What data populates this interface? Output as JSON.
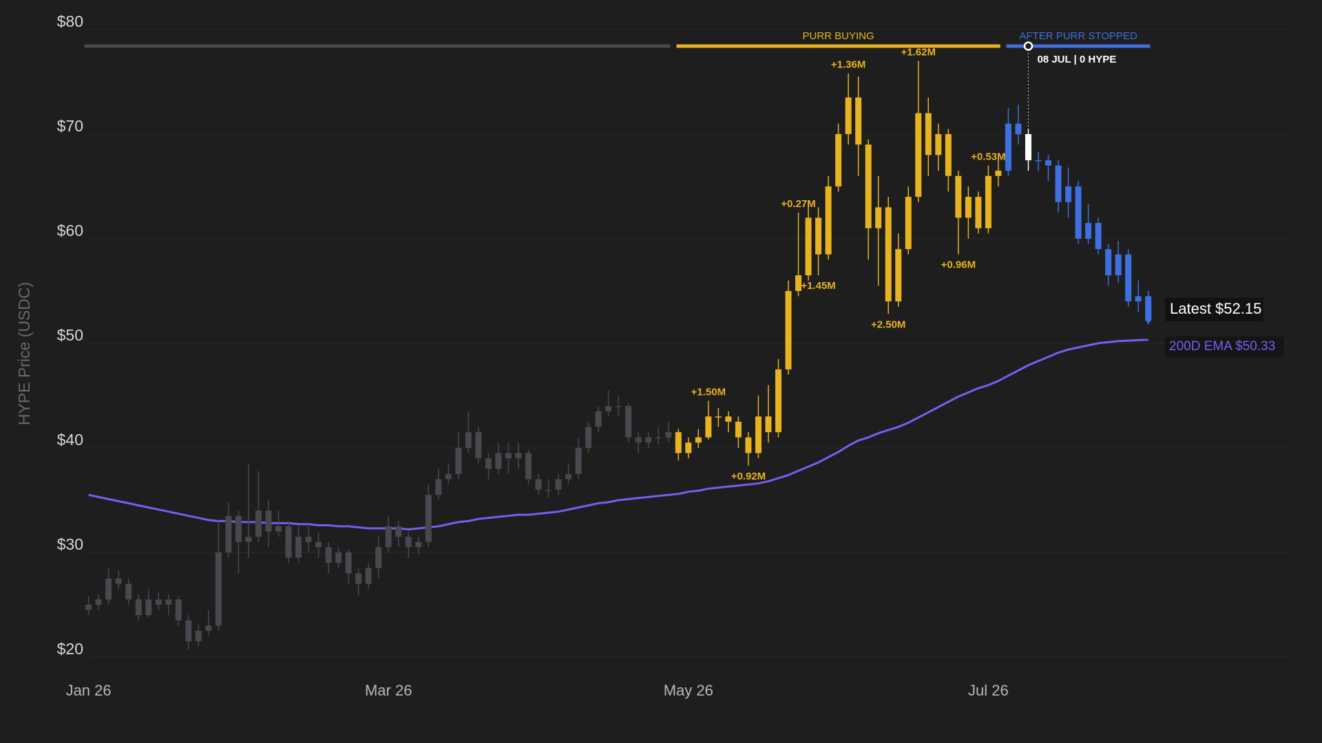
{
  "chart_data": {
    "type": "candlestick",
    "y_label": "HYPE Price (USDC)",
    "ylim": [
      20,
      80
    ],
    "yticks": [
      {
        "value": 20,
        "label": "$20"
      },
      {
        "value": 30,
        "label": "$30"
      },
      {
        "value": 40,
        "label": "$40"
      },
      {
        "value": 50,
        "label": "$50"
      },
      {
        "value": 60,
        "label": "$60"
      },
      {
        "value": 70,
        "label": "$70"
      },
      {
        "value": 80,
        "label": "$80"
      }
    ],
    "grid": true,
    "categories": [
      "Jan 26",
      null,
      null,
      null,
      null,
      null,
      null,
      null,
      null,
      null,
      null,
      null,
      null,
      null,
      null,
      null,
      null,
      null,
      null,
      null,
      null,
      null,
      null,
      null,
      null,
      null,
      null,
      null,
      null,
      null,
      "Mar 26",
      null,
      null,
      null,
      null,
      null,
      null,
      null,
      null,
      null,
      null,
      null,
      null,
      null,
      null,
      null,
      null,
      null,
      null,
      null,
      null,
      null,
      null,
      null,
      null,
      null,
      null,
      null,
      null,
      null,
      "May 26",
      null,
      null,
      null,
      null,
      null,
      null,
      null,
      null,
      null,
      null,
      null,
      null,
      null,
      null,
      null,
      null,
      null,
      null,
      null,
      null,
      null,
      null,
      null,
      null,
      null,
      null,
      null,
      null,
      null,
      "Jul 26",
      null,
      null,
      null,
      null,
      null,
      null,
      null,
      null,
      null,
      null,
      null,
      null,
      null,
      null,
      null,
      null
    ],
    "ohlc": [
      [
        24.5,
        25.8,
        24,
        25
      ],
      [
        25,
        26,
        24.5,
        25.5
      ],
      [
        25.5,
        28.5,
        25,
        27.5
      ],
      [
        27.5,
        28.3,
        26.5,
        27
      ],
      [
        27,
        27.5,
        25,
        25.5
      ],
      [
        25.5,
        26,
        23.5,
        24
      ],
      [
        24,
        26.5,
        23.8,
        25.5
      ],
      [
        25.5,
        26.2,
        24.5,
        25
      ],
      [
        25,
        26,
        24,
        25.5
      ],
      [
        25.5,
        25.8,
        23,
        23.5
      ],
      [
        23.5,
        24,
        20.7,
        21.5
      ],
      [
        21.5,
        23.2,
        21,
        22.5
      ],
      [
        22.5,
        24.5,
        22,
        23
      ],
      [
        23,
        33,
        22.5,
        30
      ],
      [
        30,
        34.8,
        29.5,
        33.5
      ],
      [
        33.5,
        34,
        28,
        31
      ],
      [
        31,
        38.5,
        29.5,
        31.5
      ],
      [
        31.5,
        37.8,
        31,
        34
      ],
      [
        34,
        35,
        30.5,
        32
      ],
      [
        32,
        34,
        31.5,
        32.5
      ],
      [
        32.5,
        33,
        29,
        29.5
      ],
      [
        29.5,
        32.5,
        29,
        31.5
      ],
      [
        31.5,
        32.5,
        30,
        31
      ],
      [
        31,
        32,
        29.5,
        30.5
      ],
      [
        30.5,
        31,
        28,
        29
      ],
      [
        29,
        30.5,
        28.5,
        30
      ],
      [
        30,
        30.3,
        27,
        28
      ],
      [
        28,
        28.5,
        25.8,
        27
      ],
      [
        27,
        29,
        26.5,
        28.5
      ],
      [
        28.5,
        31.5,
        27.5,
        30.5
      ],
      [
        30.5,
        33.5,
        30,
        32.5
      ],
      [
        32.5,
        33,
        30.5,
        31.5
      ],
      [
        31.5,
        32,
        29.5,
        30.5
      ],
      [
        30.5,
        31.5,
        29.8,
        31
      ],
      [
        31,
        36.5,
        30.5,
        35.5
      ],
      [
        35.5,
        38,
        35,
        37
      ],
      [
        37,
        38.5,
        36.5,
        37.5
      ],
      [
        37.5,
        41.5,
        37,
        40
      ],
      [
        40,
        43.5,
        39.5,
        41.5
      ],
      [
        41.5,
        42,
        38.5,
        39
      ],
      [
        39,
        39.5,
        37,
        38
      ],
      [
        38,
        40.5,
        37.5,
        39.5
      ],
      [
        39.5,
        40.5,
        37.5,
        39
      ],
      [
        39,
        40.5,
        38,
        39.5
      ],
      [
        39.5,
        39.8,
        36.5,
        37
      ],
      [
        37,
        37.5,
        35.5,
        36
      ],
      [
        36,
        37,
        35.2,
        36
      ],
      [
        36,
        37.5,
        35.5,
        37
      ],
      [
        37,
        38.5,
        36.5,
        37.5
      ],
      [
        37.5,
        41,
        37,
        40
      ],
      [
        40,
        42.5,
        39.5,
        42
      ],
      [
        42,
        44,
        41.5,
        43.5
      ],
      [
        43.5,
        45.5,
        43,
        44
      ],
      [
        44,
        45,
        43,
        44
      ],
      [
        44,
        44.3,
        40.5,
        41
      ],
      [
        41,
        41.5,
        39.5,
        40.5
      ],
      [
        40.5,
        41.5,
        40,
        41
      ],
      [
        41,
        42,
        40.3,
        41
      ],
      [
        41,
        42.5,
        40.5,
        41.5
      ],
      [
        41.5,
        41.8,
        38.8,
        39.5
      ],
      [
        39.5,
        41,
        39,
        40.5
      ],
      [
        40.5,
        41.8,
        40,
        41
      ],
      [
        41,
        44.5,
        40.8,
        43
      ],
      [
        43,
        43.8,
        42,
        43
      ],
      [
        43,
        43.5,
        41.5,
        42.5
      ],
      [
        42.5,
        43,
        40,
        41
      ],
      [
        41,
        41.5,
        38.3,
        39.5
      ],
      [
        39.5,
        45,
        39,
        43
      ],
      [
        43,
        46,
        40.5,
        41.5
      ],
      [
        41.5,
        48.5,
        41,
        47.5
      ],
      [
        47.5,
        56,
        47,
        55
      ],
      [
        55,
        62.5,
        54.5,
        56.5
      ],
      [
        56.5,
        63.5,
        56,
        62
      ],
      [
        62,
        63,
        56.5,
        58.5
      ],
      [
        58.5,
        66,
        58,
        65
      ],
      [
        65,
        71,
        64.5,
        70
      ],
      [
        70,
        75.8,
        69,
        73.5
      ],
      [
        73.5,
        75.5,
        66,
        69
      ],
      [
        69,
        69.5,
        58,
        61
      ],
      [
        61,
        66,
        55.5,
        63
      ],
      [
        63,
        64,
        52.8,
        54
      ],
      [
        54,
        60.5,
        53.5,
        59
      ],
      [
        59,
        65,
        58.5,
        64
      ],
      [
        64,
        77,
        63.5,
        72
      ],
      [
        72,
        73.5,
        66,
        68
      ],
      [
        68,
        71,
        66.5,
        70
      ],
      [
        70,
        70.5,
        64.5,
        66
      ],
      [
        66,
        66.5,
        58.5,
        62
      ],
      [
        62,
        65,
        60,
        64
      ],
      [
        64,
        64.5,
        60.5,
        61
      ],
      [
        61,
        67,
        60.5,
        66
      ],
      [
        66,
        68,
        65,
        66.5
      ],
      [
        66.5,
        72.5,
        66,
        71
      ],
      [
        71,
        72.8,
        69,
        70
      ],
      [
        70,
        70.5,
        66.5,
        67.5
      ],
      [
        67.5,
        68.3,
        66.5,
        67.5
      ],
      [
        67.5,
        68,
        65.5,
        67
      ],
      [
        67,
        67.5,
        62.5,
        63.5
      ],
      [
        63.5,
        66.8,
        62,
        65
      ],
      [
        65,
        65.5,
        59.5,
        60
      ],
      [
        60,
        63.3,
        59.5,
        61.5
      ],
      [
        61.5,
        62,
        58.5,
        59
      ],
      [
        59,
        59.5,
        55.5,
        56.5
      ],
      [
        56.5,
        59.8,
        55.8,
        58.5
      ],
      [
        58.5,
        59,
        53.5,
        54
      ],
      [
        54,
        56,
        53,
        54.5
      ],
      [
        54.5,
        55,
        51.8,
        52.15
      ]
    ],
    "phases": [
      {
        "color": "#48484f",
        "end": 58
      },
      {
        "label": "PURR BUYING",
        "color": "#e8b321",
        "end": 91
      },
      {
        "label": "AFTER PURR STOPPED",
        "color": "#3d6fde",
        "end": 106
      }
    ],
    "ema": [
      35.5,
      35.3,
      35.1,
      34.9,
      34.7,
      34.5,
      34.3,
      34.1,
      33.9,
      33.7,
      33.5,
      33.3,
      33.1,
      33.0,
      33.0,
      32.9,
      32.9,
      32.9,
      32.8,
      32.8,
      32.8,
      32.7,
      32.7,
      32.6,
      32.6,
      32.5,
      32.5,
      32.4,
      32.3,
      32.3,
      32.3,
      32.3,
      32.2,
      32.3,
      32.4,
      32.5,
      32.7,
      32.9,
      33.0,
      33.2,
      33.3,
      33.4,
      33.5,
      33.6,
      33.6,
      33.7,
      33.8,
      33.9,
      34.1,
      34.3,
      34.5,
      34.7,
      34.8,
      35.0,
      35.1,
      35.2,
      35.3,
      35.4,
      35.5,
      35.6,
      35.8,
      35.9,
      36.1,
      36.2,
      36.3,
      36.4,
      36.5,
      36.6,
      36.8,
      37.1,
      37.4,
      37.8,
      38.2,
      38.6,
      39.1,
      39.6,
      40.2,
      40.7,
      41.0,
      41.4,
      41.7,
      42.0,
      42.4,
      42.9,
      43.4,
      43.9,
      44.4,
      44.9,
      45.3,
      45.7,
      46.0,
      46.4,
      46.9,
      47.4,
      47.9,
      48.3,
      48.7,
      49.1,
      49.4,
      49.6,
      49.8,
      50.0,
      50.1,
      50.2,
      50.25,
      50.3,
      50.33
    ],
    "ema_color": "#7a5cf5",
    "ema_label": "200D EMA $50.33",
    "latest_label": "Latest $52.15",
    "flows": [
      {
        "text": "+1.50M",
        "index": 62,
        "side": "above"
      },
      {
        "text": "+0.92M",
        "index": 66,
        "side": "below"
      },
      {
        "text": "+0.27M",
        "index": 71,
        "side": "above"
      },
      {
        "text": "+1.45M",
        "index": 73,
        "side": "below"
      },
      {
        "text": "+1.36M",
        "index": 76,
        "side": "above"
      },
      {
        "text": "+2.50M",
        "index": 80,
        "side": "below"
      },
      {
        "text": "+1.62M",
        "index": 83,
        "side": "above"
      },
      {
        "text": "+0.96M",
        "index": 87,
        "side": "below"
      },
      {
        "text": "+0.53M",
        "index": 90,
        "side": "above"
      }
    ],
    "marker": {
      "label": "08 JUL | 0 HYPE",
      "index": 94,
      "color": "#ffffff"
    }
  }
}
